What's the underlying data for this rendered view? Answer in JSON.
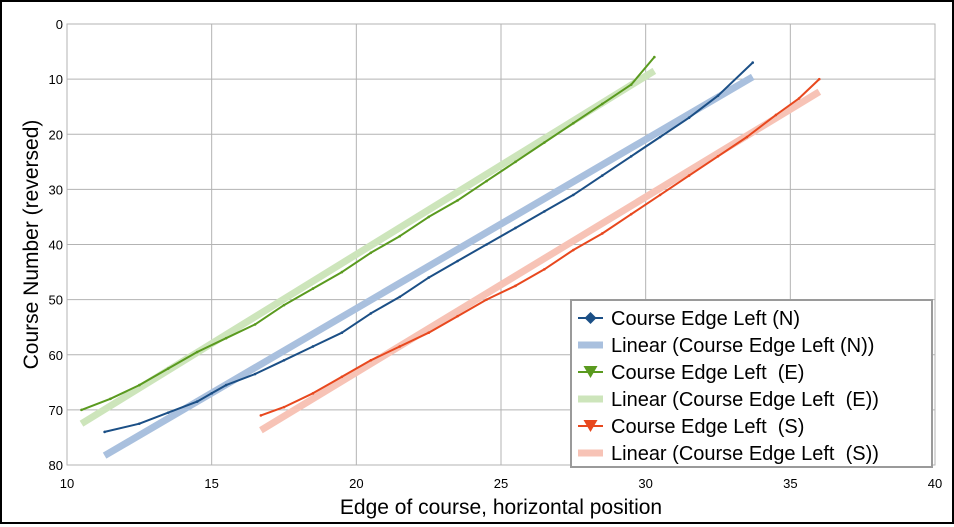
{
  "chart_data": {
    "type": "line",
    "title": "",
    "xlabel": "Edge of course, horizontal position",
    "ylabel": "Course Number (reversed)",
    "xlim": [
      10,
      40
    ],
    "ylim": [
      0,
      80
    ],
    "y_reversed": true,
    "grid": true,
    "legend_position": "bottom-right",
    "x_ticks": [
      "10",
      "15",
      "20",
      "25",
      "30",
      "35",
      "40"
    ],
    "y_ticks": [
      "0",
      "10",
      "20",
      "30",
      "40",
      "50",
      "60",
      "70",
      "80"
    ],
    "series": [
      {
        "name": "Course Edge Left (N)",
        "kind": "data",
        "marker": "diamond",
        "color": "#1b4f86",
        "points": [
          [
            11.3,
            74
          ],
          [
            12.5,
            72.5
          ],
          [
            13.5,
            70.5
          ],
          [
            14.5,
            68.5
          ],
          [
            15,
            67
          ],
          [
            15.5,
            65.5
          ],
          [
            16.5,
            63.5
          ],
          [
            17.5,
            61
          ],
          [
            18.5,
            58.5
          ],
          [
            19.5,
            56
          ],
          [
            20.5,
            52.5
          ],
          [
            21.5,
            49.5
          ],
          [
            22.5,
            46
          ],
          [
            23.5,
            43
          ],
          [
            24.5,
            40
          ],
          [
            25.5,
            37
          ],
          [
            26.5,
            34
          ],
          [
            27.5,
            31
          ],
          [
            28.5,
            27.5
          ],
          [
            29.5,
            24
          ],
          [
            30.5,
            20.5
          ],
          [
            31.5,
            17
          ],
          [
            32.5,
            13
          ],
          [
            33.7,
            7
          ]
        ]
      },
      {
        "name": "Linear (Course Edge Left (N))",
        "kind": "trend",
        "color": "#a9c0de",
        "points": [
          [
            11.3,
            78.3
          ],
          [
            33.7,
            9.6
          ]
        ]
      },
      {
        "name": "Course Edge Left  (E)",
        "kind": "data",
        "marker": "triangle-down",
        "color": "#5a9a1f",
        "points": [
          [
            10.5,
            70
          ],
          [
            11.5,
            68
          ],
          [
            12.5,
            65.5
          ],
          [
            13.5,
            62.5
          ],
          [
            14.5,
            59.5
          ],
          [
            15.5,
            57
          ],
          [
            16.5,
            54.5
          ],
          [
            17.5,
            51
          ],
          [
            18.5,
            48
          ],
          [
            19.5,
            45
          ],
          [
            20.5,
            41.5
          ],
          [
            21.5,
            38.5
          ],
          [
            22.5,
            35
          ],
          [
            23.5,
            32
          ],
          [
            24.5,
            28.5
          ],
          [
            25.5,
            25
          ],
          [
            26.5,
            21.5
          ],
          [
            27.5,
            18
          ],
          [
            28.5,
            14.5
          ],
          [
            29.5,
            11
          ],
          [
            30.3,
            6
          ]
        ]
      },
      {
        "name": "Linear (Course Edge Left  (E))",
        "kind": "trend",
        "color": "#cde5bb",
        "points": [
          [
            10.5,
            72.5
          ],
          [
            30.3,
            8.5
          ]
        ]
      },
      {
        "name": "Course Edge Left  (S)",
        "kind": "data",
        "marker": "triangle-down",
        "color": "#e8481e",
        "points": [
          [
            16.7,
            71
          ],
          [
            17.5,
            69.5
          ],
          [
            18.5,
            67
          ],
          [
            19.5,
            64
          ],
          [
            20.5,
            61
          ],
          [
            21.5,
            58.5
          ],
          [
            22.5,
            56
          ],
          [
            23.5,
            53
          ],
          [
            24.5,
            50
          ],
          [
            25.5,
            47.5
          ],
          [
            26.5,
            44.5
          ],
          [
            27.5,
            41
          ],
          [
            28.5,
            38
          ],
          [
            29.5,
            34.5
          ],
          [
            30.5,
            31
          ],
          [
            31.5,
            27.5
          ],
          [
            32.5,
            24
          ],
          [
            33.5,
            20.5
          ],
          [
            34.5,
            16.5
          ],
          [
            35.3,
            13.5
          ],
          [
            36,
            10
          ]
        ]
      },
      {
        "name": "Linear (Course Edge Left  (S))",
        "kind": "trend",
        "color": "#f7c3b6",
        "points": [
          [
            16.7,
            73.7
          ],
          [
            36,
            12.3
          ]
        ]
      }
    ]
  }
}
